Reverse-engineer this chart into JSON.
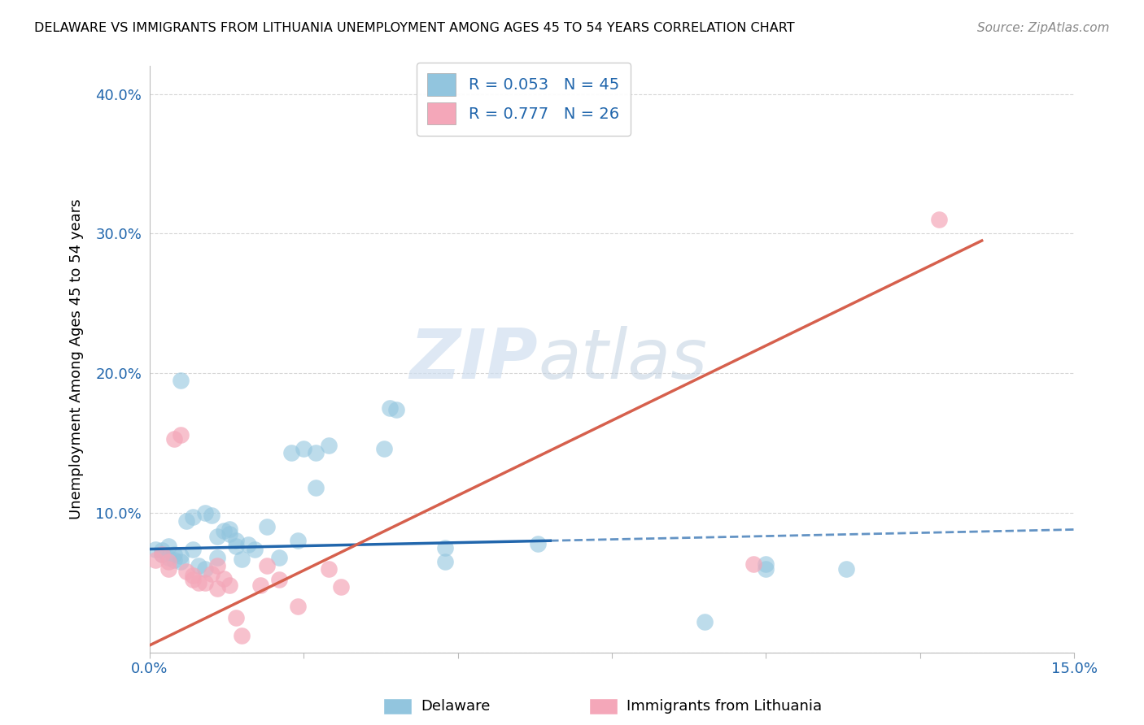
{
  "title": "DELAWARE VS IMMIGRANTS FROM LITHUANIA UNEMPLOYMENT AMONG AGES 45 TO 54 YEARS CORRELATION CHART",
  "source": "Source: ZipAtlas.com",
  "ylabel": "Unemployment Among Ages 45 to 54 years",
  "xlim": [
    0.0,
    0.15
  ],
  "ylim": [
    0.0,
    0.42
  ],
  "yticks": [
    0.0,
    0.1,
    0.2,
    0.3,
    0.4
  ],
  "ytick_labels": [
    "",
    "10.0%",
    "20.0%",
    "30.0%",
    "40.0%"
  ],
  "xticks": [
    0.0,
    0.025,
    0.05,
    0.075,
    0.1,
    0.125,
    0.15
  ],
  "xtick_labels": [
    "0.0%",
    "",
    "",
    "",
    "",
    "",
    "15.0%"
  ],
  "watermark_line1": "ZIP",
  "watermark_line2": "atlas",
  "blue_color": "#92c5de",
  "pink_color": "#f4a7b9",
  "blue_line_color": "#2166ac",
  "pink_line_color": "#d6604d",
  "blue_scatter": [
    [
      0.001,
      0.074
    ],
    [
      0.002,
      0.073
    ],
    [
      0.002,
      0.07
    ],
    [
      0.003,
      0.076
    ],
    [
      0.003,
      0.068
    ],
    [
      0.004,
      0.07
    ],
    [
      0.004,
      0.066
    ],
    [
      0.005,
      0.069
    ],
    [
      0.005,
      0.065
    ],
    [
      0.006,
      0.094
    ],
    [
      0.007,
      0.097
    ],
    [
      0.007,
      0.074
    ],
    [
      0.008,
      0.062
    ],
    [
      0.009,
      0.06
    ],
    [
      0.009,
      0.1
    ],
    [
      0.01,
      0.098
    ],
    [
      0.011,
      0.068
    ],
    [
      0.011,
      0.083
    ],
    [
      0.012,
      0.087
    ],
    [
      0.013,
      0.088
    ],
    [
      0.013,
      0.085
    ],
    [
      0.014,
      0.076
    ],
    [
      0.014,
      0.08
    ],
    [
      0.015,
      0.067
    ],
    [
      0.016,
      0.077
    ],
    [
      0.017,
      0.074
    ],
    [
      0.019,
      0.09
    ],
    [
      0.021,
      0.068
    ],
    [
      0.023,
      0.143
    ],
    [
      0.025,
      0.146
    ],
    [
      0.027,
      0.143
    ],
    [
      0.027,
      0.118
    ],
    [
      0.029,
      0.148
    ],
    [
      0.038,
      0.146
    ],
    [
      0.039,
      0.175
    ],
    [
      0.04,
      0.174
    ],
    [
      0.005,
      0.195
    ],
    [
      0.024,
      0.08
    ],
    [
      0.063,
      0.078
    ],
    [
      0.048,
      0.075
    ],
    [
      0.048,
      0.065
    ],
    [
      0.1,
      0.06
    ],
    [
      0.1,
      0.063
    ],
    [
      0.09,
      0.022
    ],
    [
      0.113,
      0.06
    ]
  ],
  "pink_scatter": [
    [
      0.001,
      0.066
    ],
    [
      0.002,
      0.07
    ],
    [
      0.003,
      0.065
    ],
    [
      0.003,
      0.06
    ],
    [
      0.004,
      0.153
    ],
    [
      0.005,
      0.156
    ],
    [
      0.006,
      0.058
    ],
    [
      0.007,
      0.055
    ],
    [
      0.007,
      0.052
    ],
    [
      0.008,
      0.05
    ],
    [
      0.009,
      0.05
    ],
    [
      0.01,
      0.056
    ],
    [
      0.011,
      0.046
    ],
    [
      0.011,
      0.062
    ],
    [
      0.012,
      0.053
    ],
    [
      0.013,
      0.048
    ],
    [
      0.014,
      0.025
    ],
    [
      0.015,
      0.012
    ],
    [
      0.018,
      0.048
    ],
    [
      0.019,
      0.062
    ],
    [
      0.021,
      0.052
    ],
    [
      0.024,
      0.033
    ],
    [
      0.029,
      0.06
    ],
    [
      0.031,
      0.047
    ],
    [
      0.098,
      0.063
    ],
    [
      0.128,
      0.31
    ]
  ],
  "blue_trendline_solid": [
    [
      0.0,
      0.074
    ],
    [
      0.065,
      0.08
    ]
  ],
  "blue_trendline_dashed": [
    [
      0.065,
      0.08
    ],
    [
      0.15,
      0.088
    ]
  ],
  "pink_trendline": [
    [
      0.0,
      0.005
    ],
    [
      0.135,
      0.295
    ]
  ]
}
